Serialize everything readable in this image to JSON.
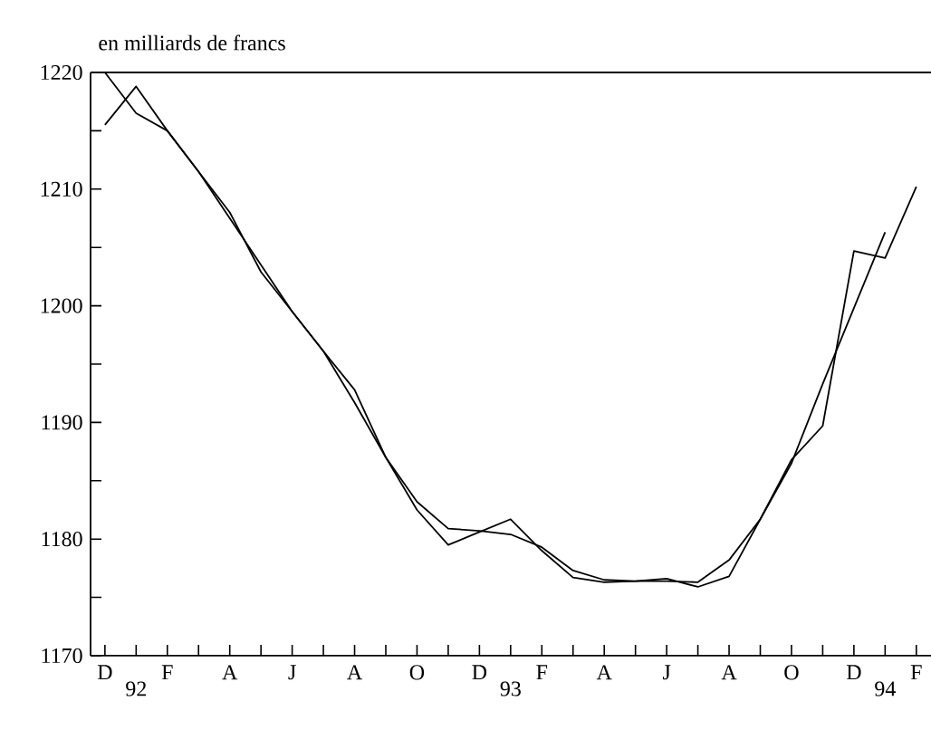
{
  "chart_data": {
    "type": "line",
    "title": "en milliards de francs",
    "categories": [
      "D",
      "92",
      "F",
      null,
      "A",
      null,
      "J",
      null,
      "A",
      null,
      "O",
      null,
      "D",
      "93",
      "F",
      null,
      "A",
      null,
      "J",
      null,
      "A",
      null,
      "O",
      null,
      "D",
      "94",
      "F"
    ],
    "series": [
      {
        "color": "#000000",
        "values": [
          1215.5,
          1218.8,
          1215.0,
          1211.5,
          1208.0,
          1202.9,
          1199.5,
          1196.1,
          1192.8,
          1187.0,
          1182.5,
          1179.5,
          1180.6,
          1181.7,
          1179.0,
          1176.7,
          1176.3,
          1176.4,
          1176.6,
          1175.9,
          1176.8,
          1181.7,
          1186.8,
          1189.7,
          1204.7,
          1204.1,
          1210.2
        ]
      },
      {
        "color": "#000000",
        "values": [
          1220.0,
          1216.5,
          1215.0,
          1211.5,
          1207.5,
          1203.5,
          1199.5,
          1196.1,
          1191.7,
          1187.0,
          1183.2,
          1180.9,
          1180.7,
          1180.4,
          1179.3,
          1177.3,
          1176.5,
          1176.4,
          1176.4,
          1176.3,
          1178.2,
          1181.7,
          1186.5,
          1193.3,
          1199.8,
          1206.3,
          null
        ]
      }
    ],
    "ylim": [
      1170,
      1220
    ],
    "yticks": [
      1170,
      {
        "value": 1175,
        "label": null
      },
      1180,
      {
        "value": 1185,
        "label": null
      },
      1190,
      {
        "value": 1195,
        "label": null
      },
      1200,
      {
        "value": 1205,
        "label": null
      },
      1210,
      {
        "value": 1215,
        "label": null
      },
      1220
    ],
    "grid": false,
    "marker": "none",
    "line_style": "solid"
  }
}
